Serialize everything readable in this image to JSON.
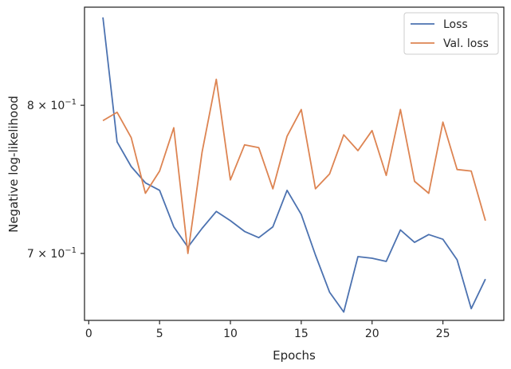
{
  "chart_data": {
    "type": "line",
    "title": "",
    "xlabel": "Epochs",
    "ylabel": "Negative log-likelihood",
    "yscale": "log",
    "xlim": [
      -0.3,
      29.3
    ],
    "ylim": [
      0.659,
      0.874
    ],
    "grid": false,
    "legend_position": "top-right",
    "x_ticks": [
      0,
      5,
      10,
      15,
      20,
      25
    ],
    "x_tick_labels": [
      "0",
      "5",
      "10",
      "15",
      "20",
      "25"
    ],
    "y_ticks": [
      0.7,
      0.8
    ],
    "y_tick_base": [
      "7",
      "8"
    ],
    "y_tick_power": "10",
    "y_tick_exp": "−1",
    "x": [
      1,
      2,
      3,
      4,
      5,
      6,
      7,
      8,
      9,
      10,
      11,
      12,
      13,
      14,
      15,
      16,
      17,
      18,
      19,
      20,
      21,
      22,
      23,
      24,
      25,
      26,
      27,
      28
    ],
    "series": [
      {
        "name": "Loss",
        "color": "#4c72b0",
        "values": [
          0.866,
          0.774,
          0.757,
          0.746,
          0.741,
          0.717,
          0.704,
          0.716,
          0.727,
          0.721,
          0.714,
          0.71,
          0.717,
          0.741,
          0.725,
          0.699,
          0.676,
          0.664,
          0.698,
          0.697,
          0.695,
          0.715,
          0.707,
          0.712,
          0.709,
          0.696,
          0.666,
          0.684
        ]
      },
      {
        "name": "Val. loss",
        "color": "#dd8452",
        "values": [
          0.789,
          0.795,
          0.777,
          0.739,
          0.754,
          0.784,
          0.7,
          0.767,
          0.819,
          0.748,
          0.772,
          0.77,
          0.742,
          0.778,
          0.797,
          0.742,
          0.752,
          0.779,
          0.768,
          0.782,
          0.751,
          0.797,
          0.747,
          0.739,
          0.788,
          0.755,
          0.754,
          0.721
        ]
      }
    ]
  }
}
